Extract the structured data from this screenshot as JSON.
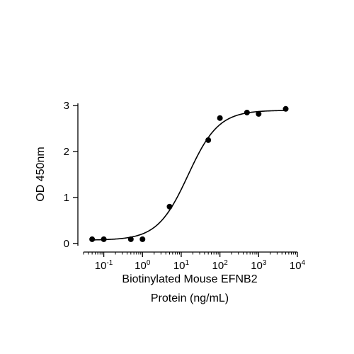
{
  "chart_data": {
    "type": "scatter",
    "title": "",
    "xlabel_lines": [
      "Biotinylated Mouse EFNB2",
      "Protein (ng/mL)"
    ],
    "ylabel": "OD 450nm",
    "x_scale": "log",
    "xlim": [
      0.03,
      10000
    ],
    "ylim": [
      -0.05,
      3.05
    ],
    "grid": false,
    "legend": "none",
    "x_major_ticks": [
      {
        "value": 0.1,
        "base": "10",
        "exp": "-1"
      },
      {
        "value": 1,
        "base": "10",
        "exp": "0"
      },
      {
        "value": 10,
        "base": "10",
        "exp": "1"
      },
      {
        "value": 100,
        "base": "10",
        "exp": "2"
      },
      {
        "value": 1000,
        "base": "10",
        "exp": "3"
      },
      {
        "value": 10000,
        "base": "10",
        "exp": "4"
      }
    ],
    "y_ticks": [
      {
        "value": 0,
        "label": "0"
      },
      {
        "value": 1,
        "label": "1"
      },
      {
        "value": 2,
        "label": "2"
      },
      {
        "value": 3,
        "label": "3"
      }
    ],
    "series": [
      {
        "points": [
          {
            "x": 0.05,
            "y": 0.09
          },
          {
            "x": 0.1,
            "y": 0.09
          },
          {
            "x": 0.5,
            "y": 0.09
          },
          {
            "x": 1,
            "y": 0.09
          },
          {
            "x": 5,
            "y": 0.8
          },
          {
            "x": 50,
            "y": 2.25
          },
          {
            "x": 100,
            "y": 2.73
          },
          {
            "x": 500,
            "y": 2.85
          },
          {
            "x": 1000,
            "y": 2.82
          },
          {
            "x": 5000,
            "y": 2.93
          }
        ],
        "fit": {
          "model": "4PL",
          "bottom": 0.07,
          "top": 2.9,
          "ec50": 15,
          "hill": 1.1
        }
      }
    ],
    "colors": {
      "points": "#000000",
      "fit_line": "#000000",
      "axes": "#000000"
    }
  }
}
